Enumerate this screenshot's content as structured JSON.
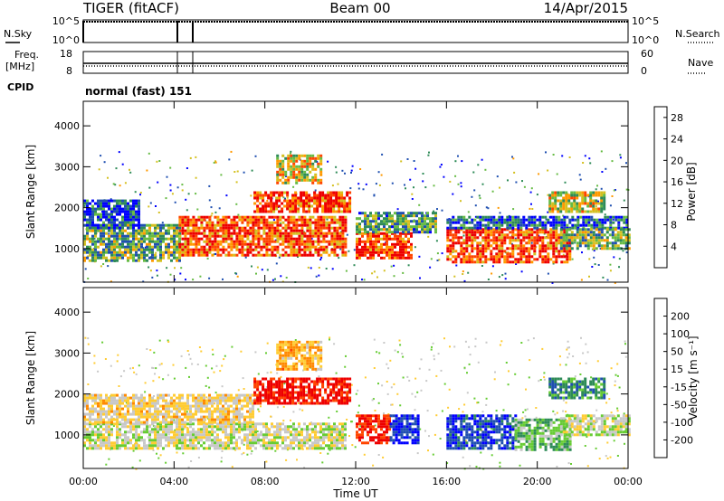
{
  "header": {
    "station": "TIGER (fitACF)",
    "beam": "Beam 00",
    "date": "14/Apr/2015"
  },
  "top_panels": {
    "nsky_label": "N.Sky",
    "nsearch_label": "N.Search",
    "nsky_ticks": [
      "10^5",
      "10^0"
    ],
    "nsearch_ticks": [
      "10^5",
      "10^0"
    ],
    "freq_label_1": "Freq.",
    "freq_label_2": "[MHz]",
    "freq_ticks": [
      "18",
      "8"
    ],
    "nave_label": "Nave",
    "nave_ticks": [
      "60",
      "0"
    ],
    "cpid_label": "CPID",
    "cpid_value": "normal (fast) 151"
  },
  "colors": {
    "power_scale": [
      "#0000ff",
      "#1f4fb0",
      "#2e8b57",
      "#66bb44",
      "#d4c020",
      "#ff9900",
      "#ff4400",
      "#ee0000"
    ],
    "velocity_scale": [
      "#0000ff",
      "#1f4fb0",
      "#2e8b57",
      "#66cc33",
      "#c8c8c8",
      "#ffcc33",
      "#ff8800",
      "#ff4400",
      "#ee0000"
    ]
  },
  "chart_data": [
    {
      "type": "heatmap",
      "name": "power",
      "xlabel": "Time UT",
      "ylabel": "Slant Range [km]",
      "x_ticks": [
        "00:00",
        "04:00",
        "08:00",
        "12:00",
        "16:00",
        "20:00",
        "00:00"
      ],
      "x_range_hours": [
        0,
        24
      ],
      "y_ticks": [
        "1000",
        "2000",
        "3000",
        "4000"
      ],
      "y_range_km": [
        180,
        4600
      ],
      "colorbar_label": "Power [dB]",
      "colorbar_ticks": [
        "4",
        "8",
        "12",
        "16",
        "20",
        "24",
        "28"
      ],
      "colorbar_range": [
        0,
        30
      ],
      "regions": [
        {
          "t0": 0.0,
          "t1": 4.2,
          "r0": 700,
          "r1": 1600,
          "level": 12
        },
        {
          "t0": 0.0,
          "t1": 2.5,
          "r0": 1500,
          "r1": 2200,
          "level": 5
        },
        {
          "t0": 4.2,
          "t1": 11.5,
          "r0": 850,
          "r1": 1800,
          "level": 24
        },
        {
          "t0": 7.5,
          "t1": 11.8,
          "r0": 1900,
          "r1": 2400,
          "level": 25
        },
        {
          "t0": 8.5,
          "t1": 10.5,
          "r0": 2600,
          "r1": 3300,
          "level": 18
        },
        {
          "t0": 12.0,
          "t1": 14.5,
          "r0": 800,
          "r1": 1400,
          "level": 26
        },
        {
          "t0": 12.0,
          "t1": 15.5,
          "r0": 1400,
          "r1": 1900,
          "level": 11
        },
        {
          "t0": 16.0,
          "t1": 21.5,
          "r0": 650,
          "r1": 1500,
          "level": 25
        },
        {
          "t0": 16.0,
          "t1": 24.0,
          "r0": 1500,
          "r1": 1800,
          "level": 6
        },
        {
          "t0": 21.0,
          "t1": 24.0,
          "r0": 1000,
          "r1": 1500,
          "level": 13
        },
        {
          "t0": 20.5,
          "t1": 23.0,
          "r0": 1900,
          "r1": 2400,
          "level": 16
        }
      ]
    },
    {
      "type": "heatmap",
      "name": "velocity",
      "xlabel": "Time UT",
      "ylabel": "Slant Range [km]",
      "x_ticks": [
        "00:00",
        "04:00",
        "08:00",
        "12:00",
        "16:00",
        "20:00",
        "00:00"
      ],
      "x_range_hours": [
        0,
        24
      ],
      "y_ticks": [
        "1000",
        "2000",
        "3000",
        "4000"
      ],
      "y_range_km": [
        180,
        4600
      ],
      "colorbar_label": "Velocity [m s⁻¹]",
      "colorbar_ticks": [
        "200",
        "100",
        "50",
        "15",
        "-15",
        "-50",
        "-100",
        "-200"
      ],
      "colorbar_range": [
        -250,
        250
      ],
      "regions": [
        {
          "t0": 0.0,
          "t1": 11.5,
          "r0": 700,
          "r1": 1300,
          "level": 0
        },
        {
          "t0": 0.0,
          "t1": 7.5,
          "r0": 1300,
          "r1": 2000,
          "level": -40
        },
        {
          "t0": 7.5,
          "t1": 11.8,
          "r0": 1800,
          "r1": 2400,
          "level": -220
        },
        {
          "t0": 8.5,
          "t1": 10.5,
          "r0": 2600,
          "r1": 3300,
          "level": -80
        },
        {
          "t0": 12.0,
          "t1": 13.5,
          "r0": 800,
          "r1": 1500,
          "level": -200
        },
        {
          "t0": 13.5,
          "t1": 14.8,
          "r0": 800,
          "r1": 1500,
          "level": 200
        },
        {
          "t0": 16.0,
          "t1": 19.0,
          "r0": 700,
          "r1": 1500,
          "level": 180
        },
        {
          "t0": 19.0,
          "t1": 21.5,
          "r0": 650,
          "r1": 1400,
          "level": 60
        },
        {
          "t0": 21.0,
          "t1": 24.0,
          "r0": 1000,
          "r1": 1500,
          "level": 0
        },
        {
          "t0": 20.5,
          "t1": 23.0,
          "r0": 1900,
          "r1": 2400,
          "level": 120
        }
      ]
    }
  ]
}
